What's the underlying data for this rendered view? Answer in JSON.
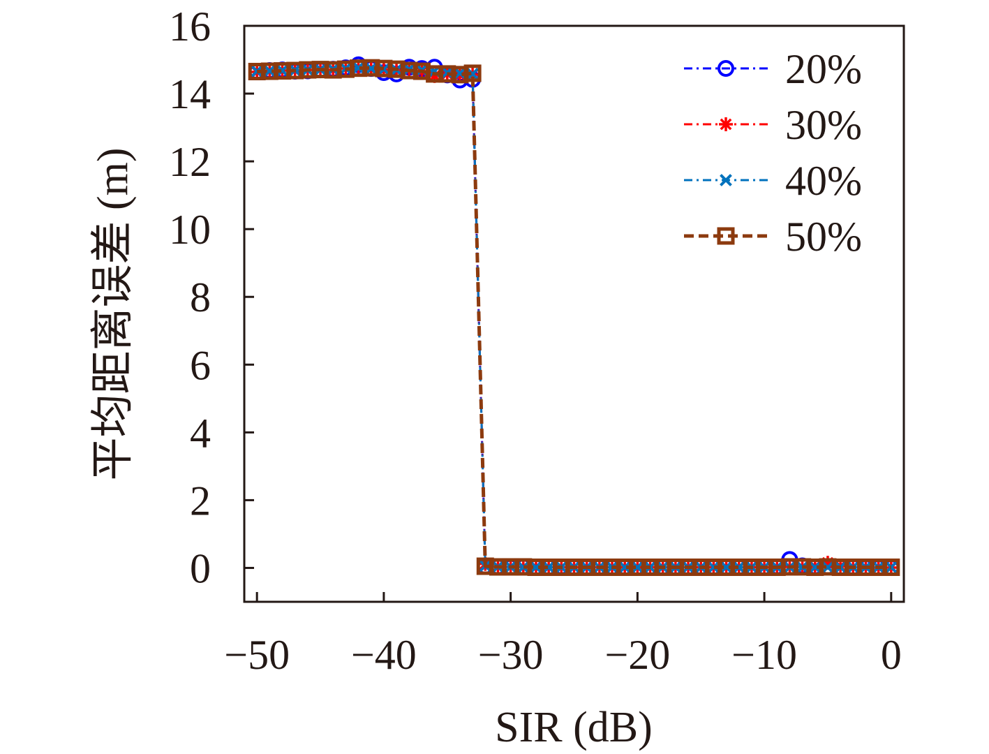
{
  "chart_data": {
    "type": "line",
    "title": "",
    "xlabel": "SIR (dB)",
    "ylabel": "平均距离误差 (m)",
    "xlim": [
      -51,
      1
    ],
    "ylim": [
      -1,
      16
    ],
    "xticks": [
      -50,
      -40,
      -30,
      -20,
      -10,
      0
    ],
    "xtick_labels": [
      "−50",
      "−40",
      "−30",
      "−20",
      "−10",
      "0"
    ],
    "yticks": [
      0,
      2,
      4,
      6,
      8,
      10,
      12,
      14,
      16
    ],
    "ytick_labels": [
      "0",
      "2",
      "4",
      "6",
      "8",
      "10",
      "12",
      "14",
      "16"
    ],
    "grid": false,
    "legend": "top-right",
    "x": [
      -50,
      -49,
      -48,
      -47,
      -46,
      -45,
      -44,
      -43,
      -42,
      -41,
      -40,
      -39,
      -38,
      -37,
      -36,
      -35,
      -34,
      -33,
      -32,
      -31,
      -30,
      -29,
      -28,
      -27,
      -26,
      -25,
      -24,
      -23,
      -22,
      -21,
      -20,
      -19,
      -18,
      -17,
      -16,
      -15,
      -14,
      -13,
      -12,
      -11,
      -10,
      -9,
      -8,
      -7,
      -6,
      -5,
      -4,
      -3,
      -2,
      -1,
      0
    ],
    "series": [
      {
        "name": "20%",
        "color": "#0000FF",
        "marker": "circle",
        "line": "dash-dot",
        "values": [
          14.65,
          14.68,
          14.7,
          14.66,
          14.67,
          14.7,
          14.72,
          14.76,
          14.85,
          14.74,
          14.62,
          14.58,
          14.78,
          14.74,
          14.78,
          14.55,
          14.4,
          14.42,
          0.05,
          0.03,
          0.02,
          0.03,
          0.02,
          0.02,
          0.03,
          0.02,
          0.02,
          0.02,
          0.02,
          0.02,
          0.02,
          0.02,
          0.02,
          0.02,
          0.02,
          0.02,
          0.02,
          0.02,
          0.02,
          0.02,
          0.02,
          0.03,
          0.25,
          0.06,
          0.03,
          0.03,
          0.02,
          0.02,
          0.01,
          0.01,
          0.01
        ]
      },
      {
        "name": "30%",
        "color": "#FF0000",
        "marker": "asterisk",
        "line": "dash-dot",
        "values": [
          14.64,
          14.66,
          14.68,
          14.68,
          14.7,
          14.72,
          14.7,
          14.74,
          14.76,
          14.72,
          14.7,
          14.68,
          14.7,
          14.66,
          14.52,
          14.58,
          14.55,
          14.56,
          0.12,
          0.04,
          0.03,
          0.03,
          0.03,
          0.02,
          0.02,
          0.02,
          0.02,
          0.02,
          0.02,
          0.02,
          0.02,
          0.02,
          0.02,
          0.02,
          0.02,
          0.02,
          0.02,
          0.02,
          0.02,
          0.02,
          0.02,
          0.02,
          0.03,
          0.03,
          0.04,
          0.15,
          0.05,
          0.02,
          0.02,
          0.01,
          0.01
        ]
      },
      {
        "name": "40%",
        "color": "#0072BD",
        "marker": "x",
        "line": "dash-dot",
        "values": [
          14.66,
          14.67,
          14.68,
          14.69,
          14.7,
          14.71,
          14.72,
          14.74,
          14.76,
          14.74,
          14.72,
          14.7,
          14.72,
          14.7,
          14.66,
          14.62,
          14.6,
          14.58,
          0.06,
          0.03,
          0.03,
          0.02,
          0.02,
          0.02,
          0.02,
          0.02,
          0.02,
          0.02,
          0.02,
          0.02,
          0.02,
          0.02,
          0.02,
          0.02,
          0.02,
          0.02,
          0.02,
          0.02,
          0.02,
          0.02,
          0.02,
          0.02,
          0.02,
          0.02,
          0.02,
          0.02,
          0.02,
          0.02,
          0.02,
          0.02,
          0.02
        ]
      },
      {
        "name": "50%",
        "color": "#8C3A0E",
        "marker": "square",
        "line": "dashed",
        "values": [
          14.65,
          14.66,
          14.67,
          14.68,
          14.7,
          14.71,
          14.7,
          14.72,
          14.75,
          14.76,
          14.74,
          14.72,
          14.68,
          14.66,
          14.58,
          14.58,
          14.56,
          14.6,
          0.05,
          0.03,
          0.03,
          0.03,
          0.02,
          0.02,
          0.02,
          0.02,
          0.02,
          0.02,
          0.02,
          0.02,
          0.02,
          0.02,
          0.02,
          0.02,
          0.02,
          0.02,
          0.02,
          0.02,
          0.02,
          0.02,
          0.02,
          0.02,
          0.03,
          0.03,
          0.02,
          0.03,
          0.02,
          0.02,
          0.02,
          0.02,
          0.02
        ]
      }
    ]
  }
}
